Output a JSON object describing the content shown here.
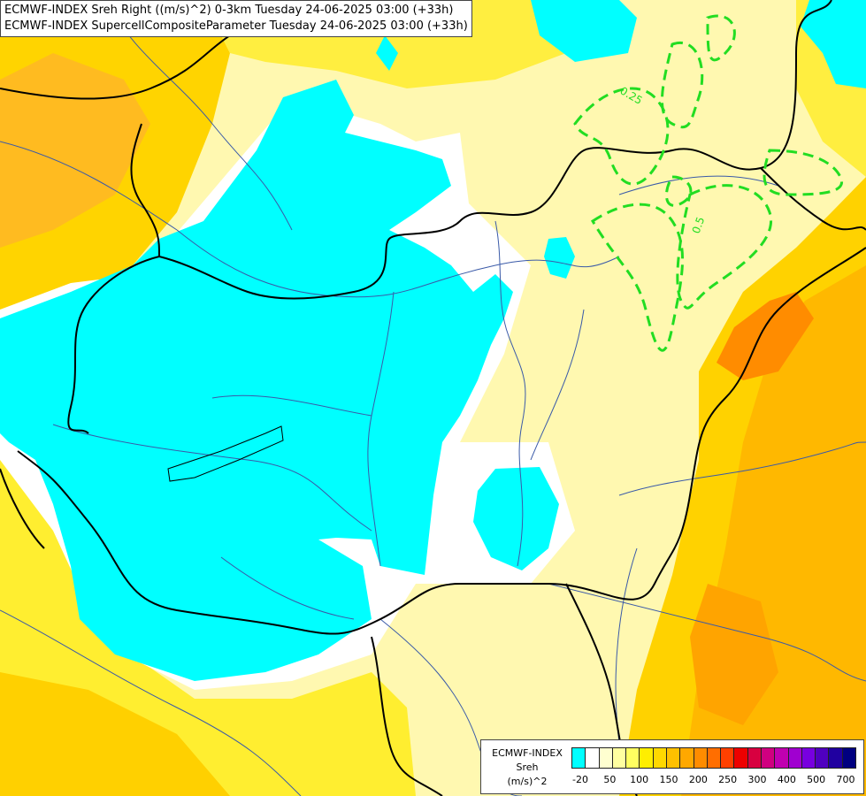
{
  "title": {
    "line1": "ECMWF-INDEX Sreh Right ((m/s)^2) 0-3km Tuesday 24-06-2025 03:00 (+33h)",
    "line2": "ECMWF-INDEX SupercellCompositeParameter Tuesday 24-06-2025 03:00 (+33h)"
  },
  "contour_labels": [
    "0.25",
    "0.5"
  ],
  "legend": {
    "source": "ECMWF-INDEX",
    "variable": "Sreh",
    "unit": "(m/s)^2",
    "colors": [
      "#00ffff",
      "#ffffff",
      "#ffffd0",
      "#ffffa0",
      "#ffff60",
      "#ffee00",
      "#ffd800",
      "#ffc000",
      "#ffa800",
      "#ff8c00",
      "#ff6e00",
      "#ff4000",
      "#ee0000",
      "#d80040",
      "#d00080",
      "#c000b0",
      "#a000d0",
      "#7800e0",
      "#5000c0",
      "#2000a0",
      "#000080"
    ],
    "ticks": [
      "-20",
      "50",
      "100",
      "150",
      "200",
      "250",
      "300",
      "400",
      "500",
      "700"
    ]
  },
  "colors": {
    "border": "#000000",
    "river": "#3a5aa8",
    "scp_contour": "#22dd22"
  }
}
